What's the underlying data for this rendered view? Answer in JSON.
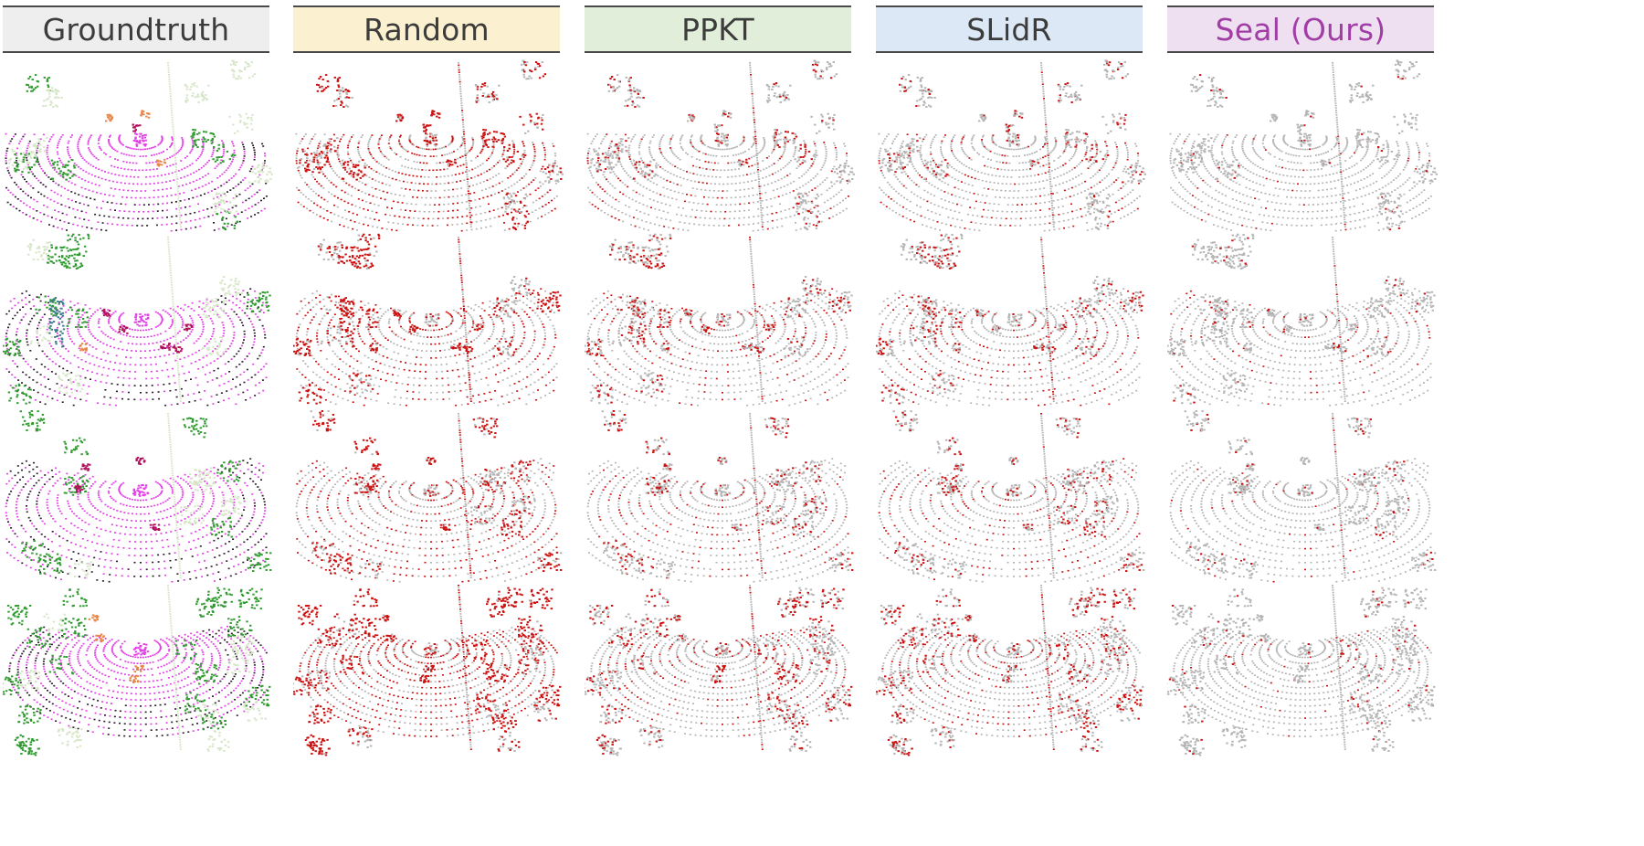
{
  "columns": [
    {
      "key": "groundtruth",
      "label": "Groundtruth",
      "header_bg": "#eeeeee",
      "text_color": "#3c3c3c"
    },
    {
      "key": "random",
      "label": "Random",
      "header_bg": "#fbf1d0",
      "text_color": "#3c3c3c"
    },
    {
      "key": "ppkt",
      "label": "PPKT",
      "header_bg": "#e1eed9",
      "text_color": "#3c3c3c"
    },
    {
      "key": "slidr",
      "label": "SLidR",
      "header_bg": "#dce8f5",
      "text_color": "#3c3c3c"
    },
    {
      "key": "seal",
      "label": "Seal (Ours)",
      "header_bg": "#eee0f0",
      "text_color": "#a03ea6"
    }
  ],
  "colors": {
    "error_point": "#cc1010",
    "correct_point": "#b4b4b4",
    "gt_drivable": "#e23fe6",
    "gt_vegetation": "#2f9a2f",
    "gt_building": "#d7e6c8",
    "gt_vehicle": "#e8874a",
    "gt_car": "#b0105a",
    "gt_bus": "#3a7f8a",
    "gt_terrain": "#2a1a2a"
  },
  "rows": [
    {
      "scene": "scene-1",
      "error_level": {
        "random": 0.55,
        "ppkt": 0.22,
        "slidr": 0.2,
        "seal": 0.05
      }
    },
    {
      "scene": "scene-2",
      "error_level": {
        "random": 0.5,
        "ppkt": 0.28,
        "slidr": 0.26,
        "seal": 0.1
      }
    },
    {
      "scene": "scene-3",
      "error_level": {
        "random": 0.48,
        "ppkt": 0.25,
        "slidr": 0.22,
        "seal": 0.08
      }
    },
    {
      "scene": "scene-4",
      "error_level": {
        "random": 0.6,
        "ppkt": 0.28,
        "slidr": 0.3,
        "seal": 0.07
      }
    }
  ]
}
